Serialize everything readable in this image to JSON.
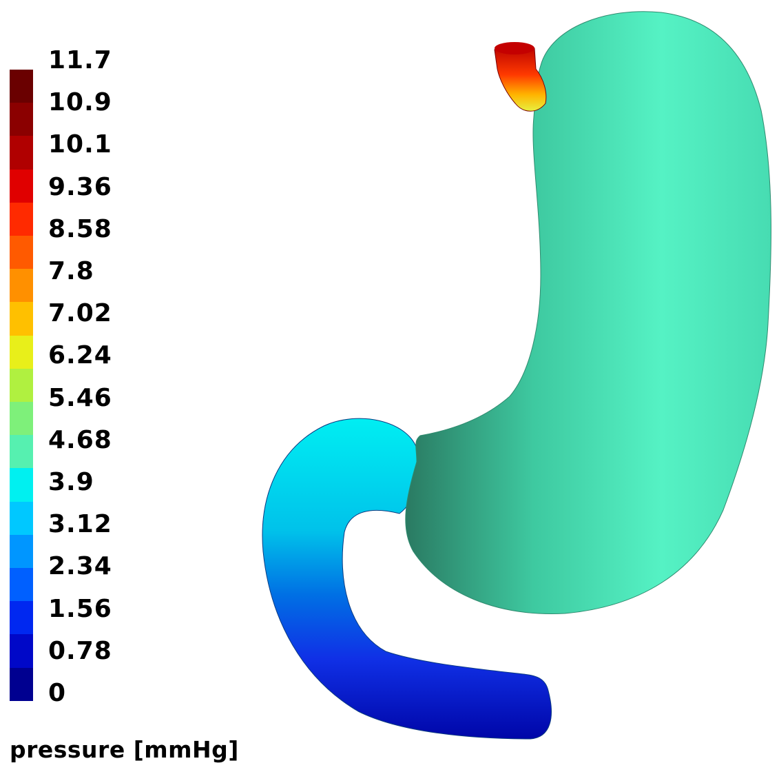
{
  "legend": {
    "title": "pressure [mmHg]",
    "ticks": [
      "11.7",
      "10.9",
      "10.1",
      "9.36",
      "8.58",
      "7.8",
      "7.02",
      "6.24",
      "5.46",
      "4.68",
      "3.9",
      "3.12",
      "2.34",
      "1.56",
      "0.78",
      "0"
    ],
    "colors": [
      "#6a0000",
      "#8b0000",
      "#b00000",
      "#e00000",
      "#ff2a00",
      "#ff5a00",
      "#ff9000",
      "#ffc000",
      "#e8ef1a",
      "#b0f040",
      "#7ef07a",
      "#56f0b0",
      "#00f0f0",
      "#00c8ff",
      "#0096ff",
      "#0060ff",
      "#0028f0",
      "#0008c8",
      "#000090"
    ]
  },
  "model": {
    "stomach_color": "#4ff0c2",
    "stomach_shadow": "#2a7a62",
    "esophagus_colors": [
      "#c80000",
      "#ff3000",
      "#ffb000",
      "#e6f040"
    ],
    "duodenum_colors": [
      "#00e8ee",
      "#00b8e8",
      "#0060e0",
      "#1020e0",
      "#0008b0"
    ]
  }
}
